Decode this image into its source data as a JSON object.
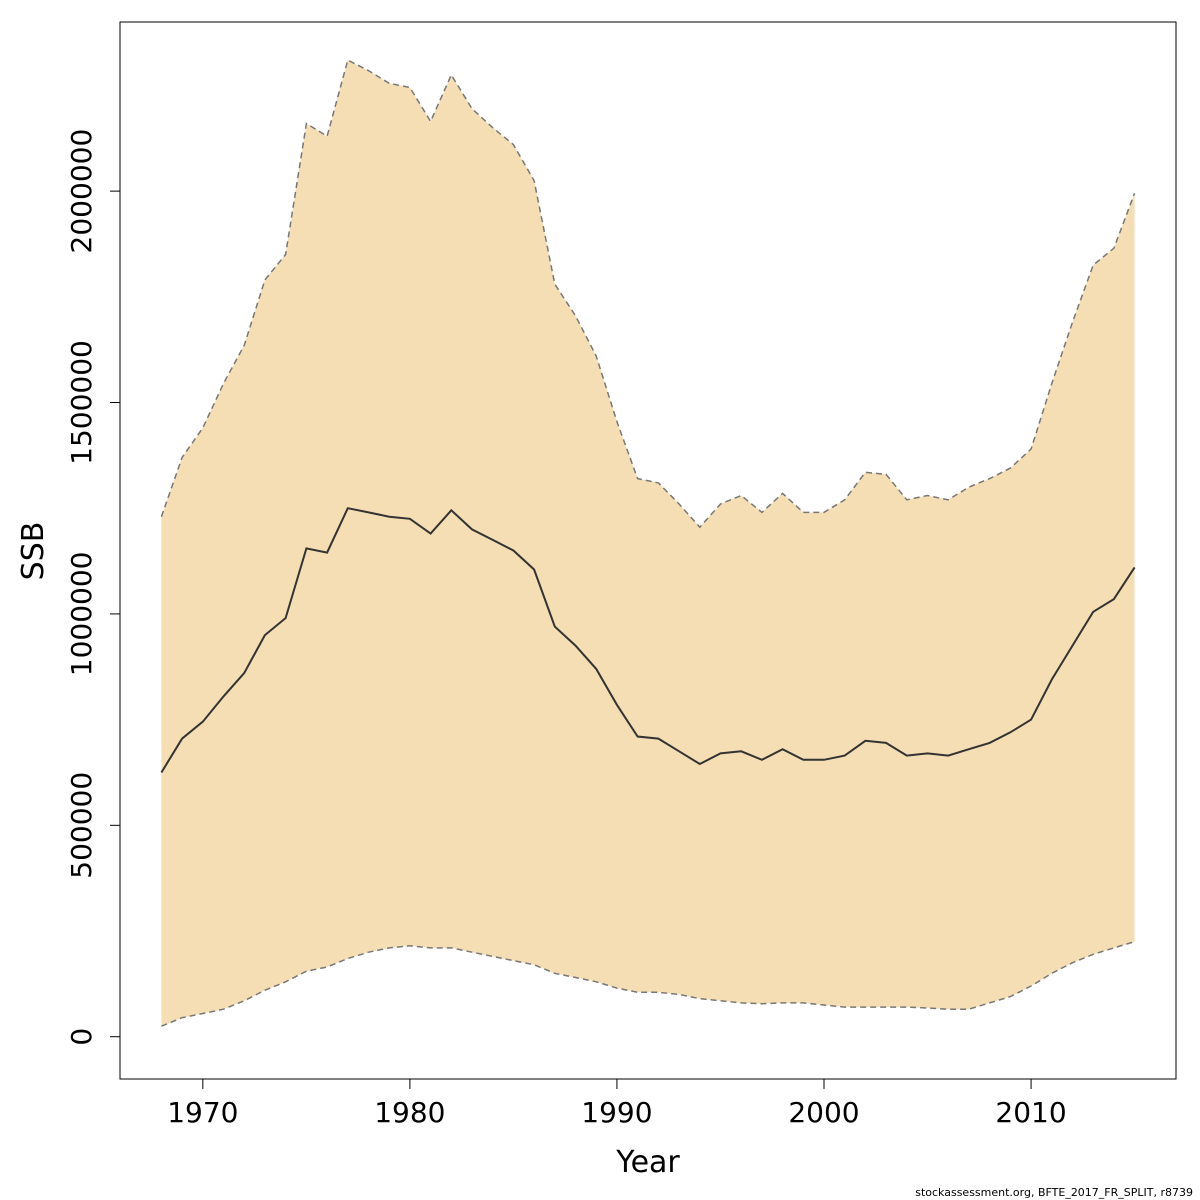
{
  "chart_data": {
    "type": "area",
    "xlabel": "Year",
    "ylabel": "SSB",
    "xlim": [
      1966,
      2017
    ],
    "ylim": [
      -100000,
      2400000
    ],
    "x_ticks": [
      1970,
      1980,
      1990,
      2000,
      2010
    ],
    "y_ticks": [
      0,
      500000,
      1000000,
      1500000,
      2000000
    ],
    "x_tick_labels": [
      "1970",
      "1980",
      "1990",
      "2000",
      "2010"
    ],
    "y_tick_labels": [
      "0",
      "500000",
      "1000000",
      "1500000",
      "2000000"
    ],
    "grid": false,
    "colors": {
      "band": "#F5DEB3",
      "line": "#333333",
      "bound": "#777777"
    },
    "x": [
      1968,
      1969,
      1970,
      1971,
      1972,
      1973,
      1974,
      1975,
      1976,
      1977,
      1978,
      1979,
      1980,
      1981,
      1982,
      1983,
      1984,
      1985,
      1986,
      1987,
      1988,
      1989,
      1990,
      1991,
      1992,
      1993,
      1994,
      1995,
      1996,
      1997,
      1998,
      1999,
      2000,
      2001,
      2002,
      2003,
      2004,
      2005,
      2006,
      2007,
      2008,
      2009,
      2010,
      2011,
      2012,
      2013,
      2014,
      2015
    ],
    "series": [
      {
        "role": "estimate",
        "values": [
          625000,
          705000,
          745000,
          805000,
          860000,
          950000,
          990000,
          1155000,
          1145000,
          1250000,
          1240000,
          1230000,
          1225000,
          1190000,
          1245000,
          1200000,
          1175000,
          1150000,
          1105000,
          970000,
          925000,
          870000,
          785000,
          710000,
          705000,
          675000,
          645000,
          670000,
          675000,
          655000,
          680000,
          655000,
          655000,
          665000,
          700000,
          695000,
          665000,
          670000,
          665000,
          680000,
          695000,
          720000,
          750000,
          845000,
          925000,
          1005000,
          1035000,
          1110000
        ]
      },
      {
        "role": "upper",
        "values": [
          1230000,
          1370000,
          1440000,
          1545000,
          1635000,
          1790000,
          1850000,
          2160000,
          2130000,
          2310000,
          2285000,
          2255000,
          2245000,
          2165000,
          2275000,
          2195000,
          2150000,
          2110000,
          2025000,
          1780000,
          1705000,
          1610000,
          1455000,
          1320000,
          1310000,
          1260000,
          1205000,
          1260000,
          1280000,
          1240000,
          1285000,
          1240000,
          1240000,
          1270000,
          1335000,
          1330000,
          1270000,
          1280000,
          1270000,
          1300000,
          1320000,
          1345000,
          1390000,
          1545000,
          1690000,
          1825000,
          1865000,
          1995000
        ]
      },
      {
        "role": "lower",
        "values": [
          25000,
          45000,
          55000,
          65000,
          85000,
          110000,
          130000,
          155000,
          165000,
          185000,
          200000,
          210000,
          215000,
          210000,
          210000,
          200000,
          190000,
          180000,
          170000,
          150000,
          140000,
          130000,
          115000,
          105000,
          105000,
          100000,
          90000,
          85000,
          80000,
          78000,
          80000,
          80000,
          75000,
          70000,
          70000,
          70000,
          70000,
          68000,
          65000,
          65000,
          80000,
          95000,
          120000,
          150000,
          175000,
          195000,
          210000,
          225000
        ]
      }
    ]
  },
  "footer": "stockassessment.org, BFTE_2017_FR_SPLIT, r8739"
}
